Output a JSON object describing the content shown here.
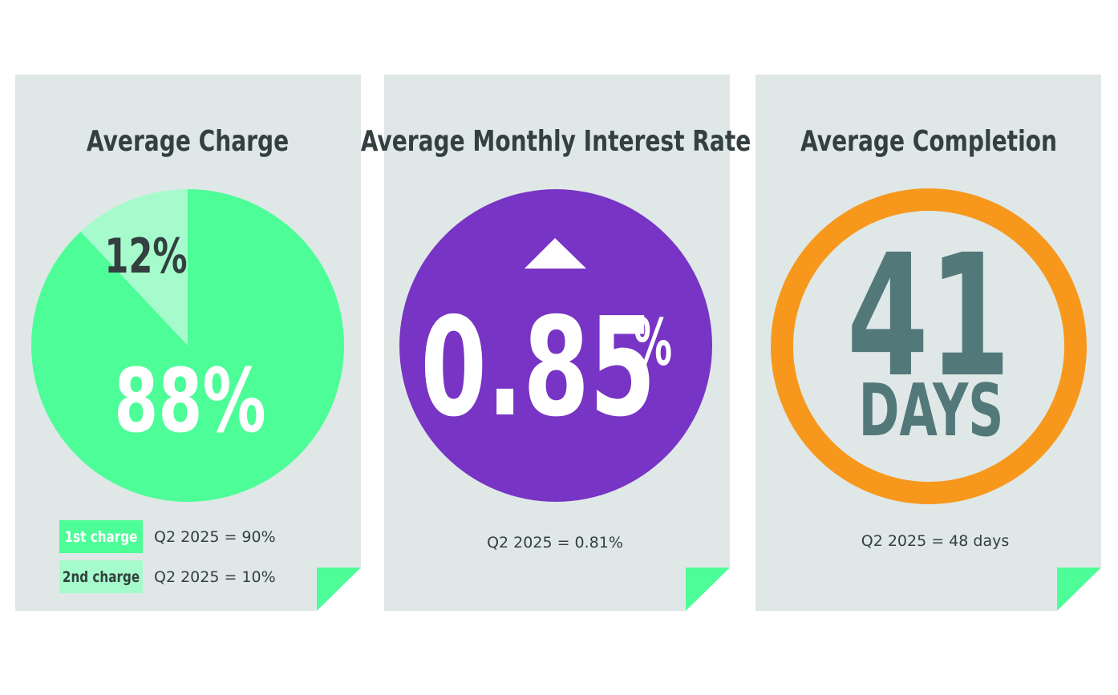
{
  "cards": [
    {
      "title": "Average Charge",
      "type": "pie",
      "values": [
        88,
        12
      ],
      "value_labels": [
        "88%",
        "12%"
      ],
      "categories": [
        "1st charge",
        "2nd charge"
      ],
      "colors": [
        "#4dfd98",
        "#a6fbcc"
      ],
      "notes": [
        "Q2 2025 = 90%",
        "Q2 2025 = 10%"
      ]
    },
    {
      "title": "Average Monthly Interest Rate",
      "type": "stat",
      "value": "0.85",
      "unit": "%",
      "trend": "up",
      "color": "#7834c4",
      "notes": [
        "Q2 2025 = 0.81%"
      ]
    },
    {
      "title": "Average Completion",
      "type": "ring",
      "value": "41",
      "unit": "DAYS",
      "color": "#f7981d",
      "notes": [
        "Q2 2025 = 48 days"
      ]
    }
  ]
}
